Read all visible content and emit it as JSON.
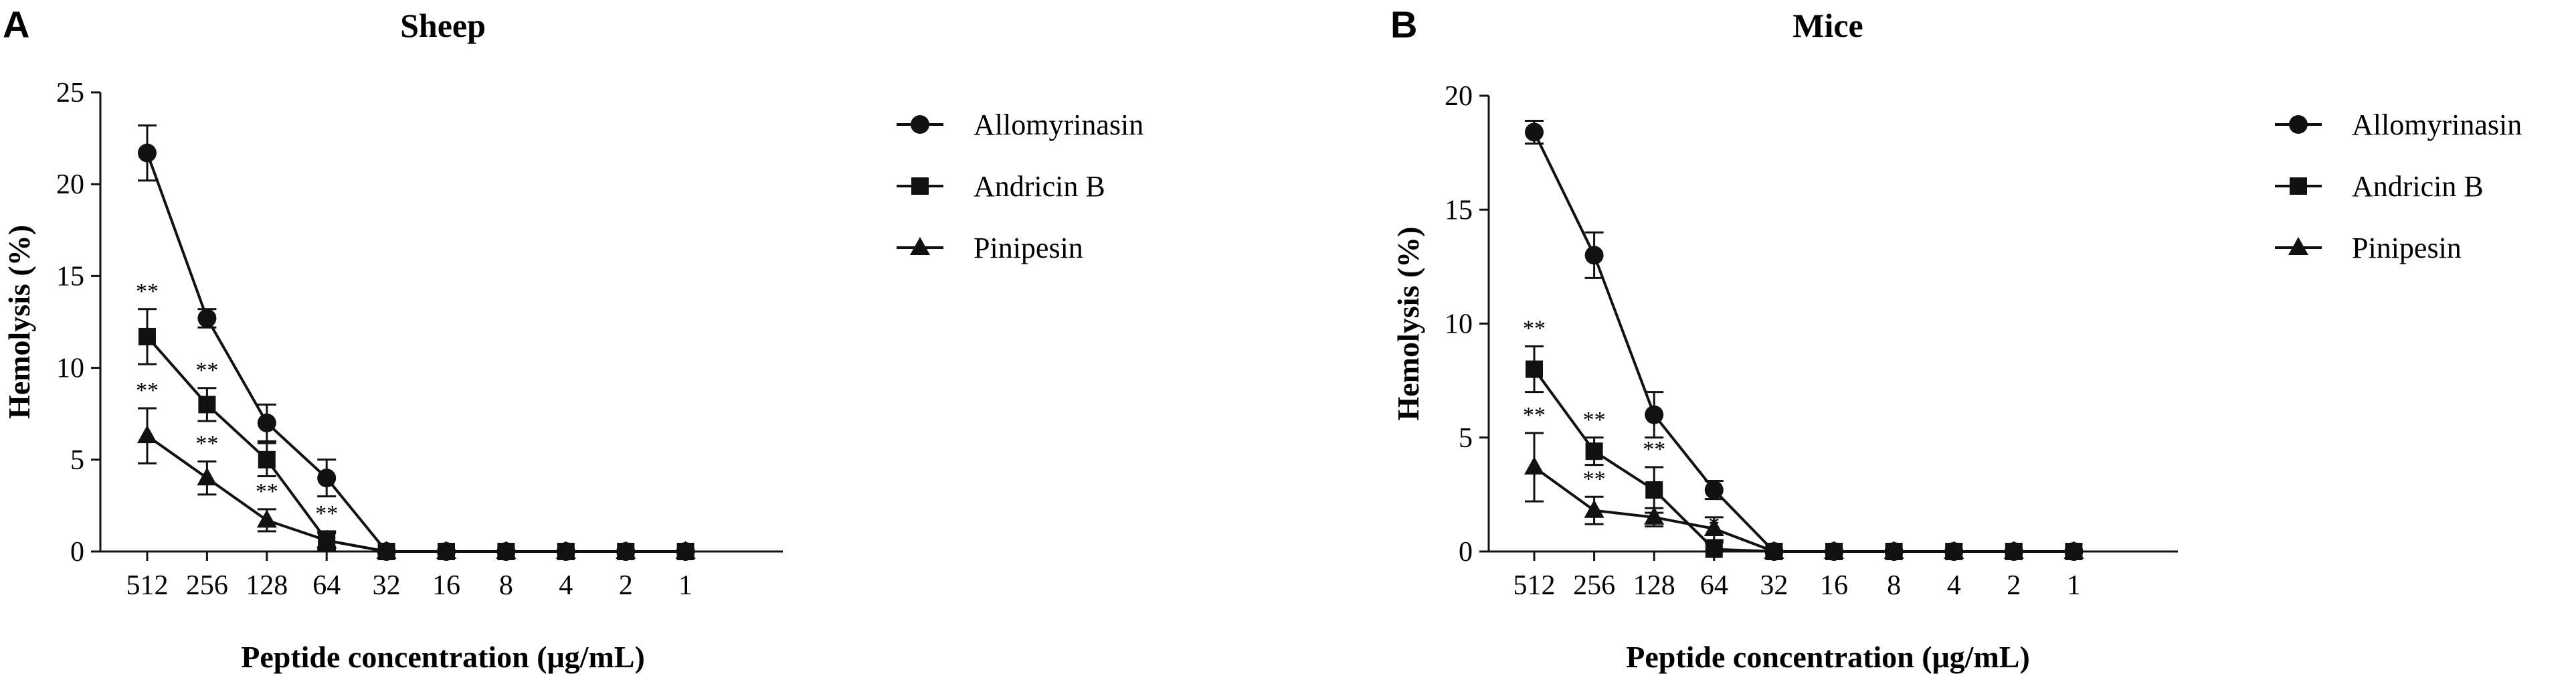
{
  "chart_data": [
    {
      "type": "line",
      "panel_label": "A",
      "title": "Sheep",
      "xlabel": "Peptide concentration (μg/mL)",
      "ylabel": "Hemolysis (%)",
      "categories": [
        "512",
        "256",
        "128",
        "64",
        "32",
        "16",
        "8",
        "4",
        "2",
        "1"
      ],
      "ylim": [
        0,
        25
      ],
      "yticks": [
        0,
        5,
        10,
        15,
        20,
        25
      ],
      "grid": false,
      "legend_position": "right",
      "series": [
        {
          "name": "Allomyrinasin",
          "marker": "circle",
          "values": [
            21.7,
            12.7,
            7.0,
            4.0,
            0,
            0,
            0,
            0,
            0,
            0
          ],
          "errors": [
            1.5,
            0.5,
            1.0,
            1.0,
            0,
            0,
            0,
            0,
            0,
            0
          ],
          "significance": [
            "",
            "",
            "",
            "",
            "",
            "",
            "",
            "",
            "",
            ""
          ]
        },
        {
          "name": "Andricin B",
          "marker": "square",
          "values": [
            11.7,
            8.0,
            5.0,
            0.6,
            0,
            0,
            0,
            0,
            0,
            0
          ],
          "errors": [
            1.5,
            0.9,
            0.9,
            0.5,
            0,
            0,
            0,
            0,
            0,
            0
          ],
          "significance": [
            "**",
            "**",
            "",
            "**",
            "",
            "",
            "",
            "",
            "",
            ""
          ]
        },
        {
          "name": "Pinipesin",
          "marker": "triangle",
          "values": [
            6.3,
            4.0,
            1.7,
            0.6,
            0,
            0,
            0,
            0,
            0,
            0
          ],
          "errors": [
            1.5,
            0.9,
            0.6,
            0.4,
            0,
            0,
            0,
            0,
            0,
            0
          ],
          "significance": [
            "**",
            "**",
            "**",
            "",
            "",
            "",
            "",
            "",
            "",
            ""
          ]
        }
      ]
    },
    {
      "type": "line",
      "panel_label": "B",
      "title": "Mice",
      "xlabel": "Peptide concentration (μg/mL)",
      "ylabel": "Hemolysis (%)",
      "categories": [
        "512",
        "256",
        "128",
        "64",
        "32",
        "16",
        "8",
        "4",
        "2",
        "1"
      ],
      "ylim": [
        0,
        20
      ],
      "yticks": [
        0,
        5,
        10,
        15,
        20
      ],
      "grid": false,
      "legend_position": "right",
      "series": [
        {
          "name": "Allomyrinasin",
          "marker": "circle",
          "values": [
            18.4,
            13.0,
            6.0,
            2.7,
            0,
            0,
            0,
            0,
            0,
            0
          ],
          "errors": [
            0.5,
            1.0,
            1.0,
            0.4,
            0,
            0,
            0,
            0,
            0,
            0
          ],
          "significance": [
            "",
            "",
            "",
            "",
            "",
            "",
            "",
            "",
            "",
            ""
          ]
        },
        {
          "name": "Andricin B",
          "marker": "square",
          "values": [
            8.0,
            4.4,
            2.7,
            0.1,
            0,
            0,
            0,
            0,
            0,
            0
          ],
          "errors": [
            1.0,
            0.6,
            1.0,
            0.3,
            0,
            0,
            0,
            0,
            0,
            0
          ],
          "significance": [
            "**",
            "**",
            "**",
            "*",
            "",
            "",
            "",
            "",
            "",
            ""
          ]
        },
        {
          "name": "Pinipesin",
          "marker": "triangle",
          "values": [
            3.7,
            1.8,
            1.5,
            1.0,
            0,
            0,
            0,
            0,
            0,
            0
          ],
          "errors": [
            1.5,
            0.6,
            0.4,
            0.5,
            0,
            0,
            0,
            0,
            0,
            0
          ],
          "significance": [
            "**",
            "**",
            "",
            "",
            "",
            "",
            "",
            "",
            "",
            ""
          ]
        }
      ]
    }
  ]
}
